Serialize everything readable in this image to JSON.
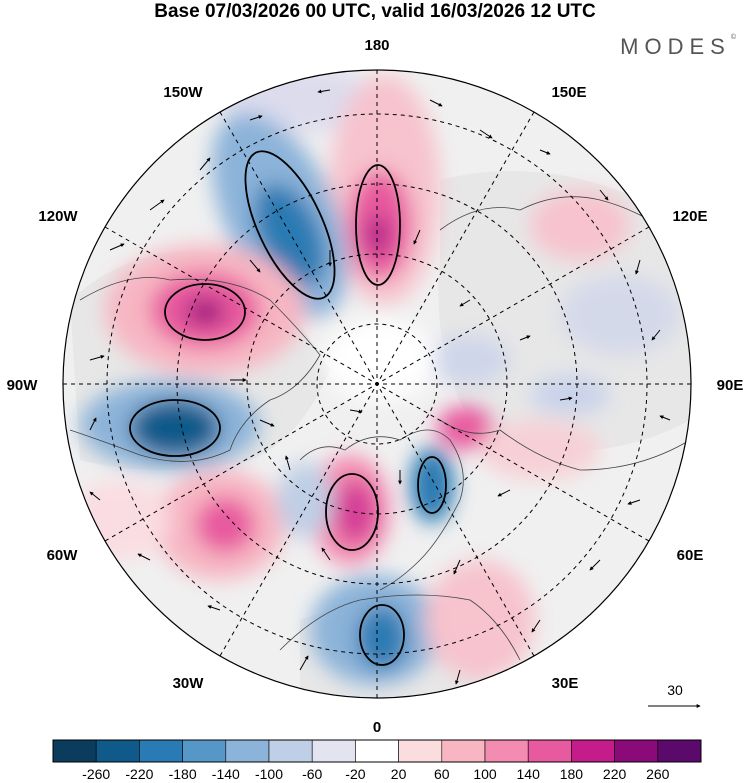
{
  "title": "Base 07/03/2026 00 UTC, valid 16/03/2026 12 UTC",
  "brand": "MODES",
  "brand_mark": "©",
  "longitude_labels": {
    "n180": "180",
    "n150w": "150W",
    "n150e": "150E",
    "n120w": "120W",
    "n120e": "120E",
    "n90w": "90W",
    "n90e": "90E",
    "n60w": "60W",
    "n60e": "60E",
    "n30w": "30W",
    "n30e": "30E",
    "n0": "0"
  },
  "vector_scale_label": "30",
  "colorbar": {
    "colors": [
      "#0b3c5d",
      "#0f5a8a",
      "#2a7ab3",
      "#5598c8",
      "#8cb3d9",
      "#bfcfe6",
      "#e4e4f0",
      "#ffffff",
      "#fbdde0",
      "#f7b6c2",
      "#f48bb0",
      "#e85a9f",
      "#c41c8a",
      "#8b0a7a",
      "#5b0a6b"
    ],
    "tick_labels": [
      "-260",
      "-220",
      "-180",
      "-140",
      "-100",
      "-60",
      "-20",
      "20",
      "60",
      "100",
      "140",
      "180",
      "220",
      "260"
    ]
  },
  "colors": {
    "land": "#eeeeee",
    "ocean": "#ffffff"
  }
}
